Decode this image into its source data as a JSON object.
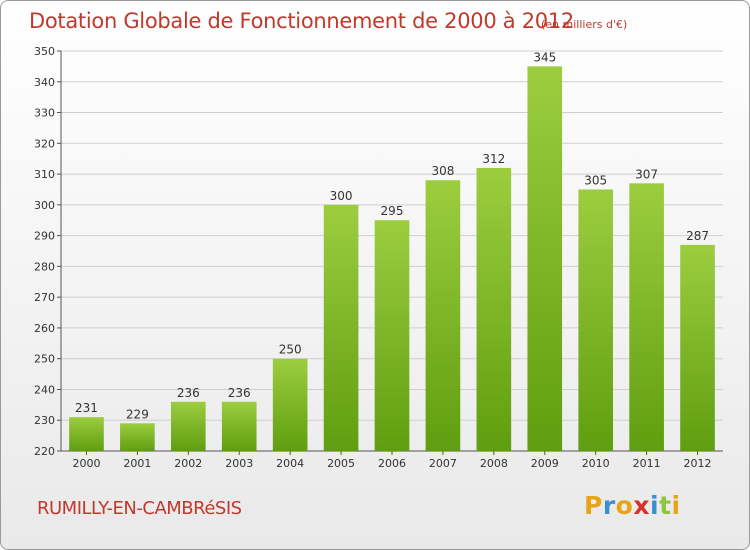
{
  "header": {
    "title": "Dotation Globale de Fonctionnement de 2000 à 2012",
    "unit": "(en milliers d'€)"
  },
  "footer": {
    "commune": "RUMILLY-EN-CAMBRéSIS",
    "brand_letters": [
      "P",
      "r",
      "o",
      "x",
      "i",
      "t",
      "i"
    ],
    "brand_colors": [
      "#e8a317",
      "#3a8fd1",
      "#e8a317",
      "#d9302c",
      "#3a8fd1",
      "#8cc63f",
      "#e8a317"
    ]
  },
  "colors": {
    "bar_top": "#9ccd3f",
    "bar_bottom": "#5f9e10",
    "grid": "#cfcfcf",
    "axis": "#555555",
    "title": "#c0392b"
  },
  "chart_data": {
    "type": "bar",
    "title": "Dotation Globale de Fonctionnement de 2000 à 2012",
    "unit_label": "(en milliers d'€)",
    "categories": [
      "2000",
      "2001",
      "2002",
      "2003",
      "2004",
      "2005",
      "2006",
      "2007",
      "2008",
      "2009",
      "2010",
      "2011",
      "2012"
    ],
    "values": [
      231,
      229,
      236,
      236,
      250,
      300,
      295,
      308,
      312,
      345,
      305,
      307,
      287
    ],
    "ylim": [
      220,
      350
    ],
    "yticks": [
      220,
      230,
      240,
      250,
      260,
      270,
      280,
      290,
      300,
      310,
      320,
      330,
      340,
      350
    ],
    "grid": true,
    "data_labels": true
  }
}
